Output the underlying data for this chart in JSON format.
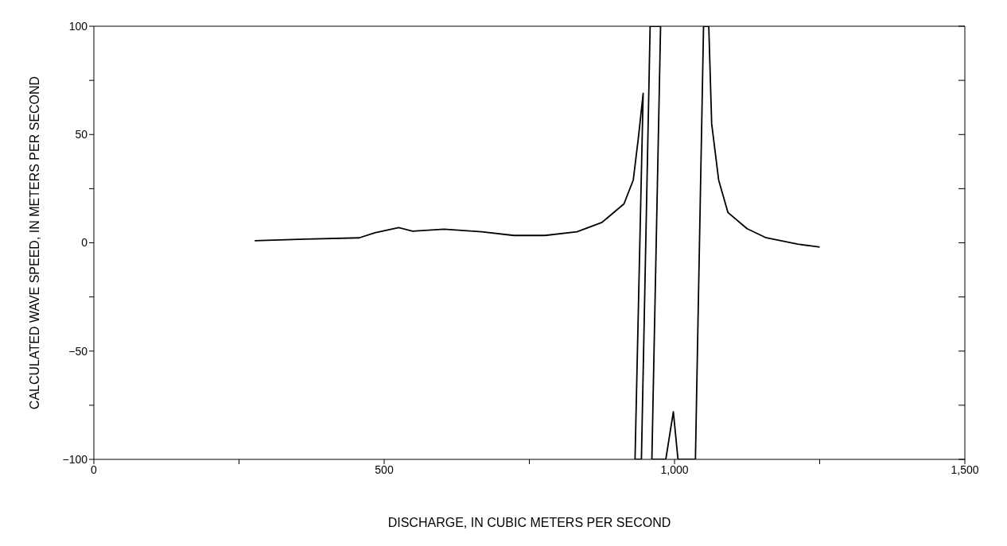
{
  "chart_data": {
    "type": "line",
    "xlabel": "DISCHARGE, IN CUBIC METERS PER SECOND",
    "ylabel": "CALCULATED WAVE SPEED, IN METERS PER SECOND",
    "series": [
      {
        "color": "#000000",
        "x": [
          277,
          364,
          457,
          484,
          525,
          549,
          603,
          668,
          723,
          777,
          832,
          875,
          913,
          929,
          938,
          946,
          932,
          943,
          958,
          976,
          961,
          985,
          998,
          1006,
          1036,
          1050,
          1059,
          1064,
          1076,
          1092,
          1125,
          1158,
          1212,
          1250
        ],
        "values": [
          1,
          1.7,
          2.3,
          4.6,
          7,
          5.4,
          6.3,
          5.1,
          3.4,
          3.4,
          5.1,
          9.4,
          18,
          29,
          49,
          69,
          -100,
          -100,
          100,
          100,
          -100,
          -100,
          -78,
          -100,
          -100,
          100,
          100,
          55,
          29,
          14,
          6.5,
          2.3,
          -0.6,
          -2
        ]
      }
    ],
    "xlim": [
      0,
      1500
    ],
    "xticks": [
      0,
      {
        "value": 250,
        "label": null
      },
      500,
      {
        "value": 750,
        "label": null
      },
      {
        "value": 1000,
        "label": "1,000"
      },
      {
        "value": 1250,
        "label": null
      },
      {
        "value": 1500,
        "label": "1,500"
      }
    ],
    "ylim": [
      -100,
      100
    ],
    "yticks": [
      -100,
      {
        "value": -75,
        "label": null
      },
      -50,
      {
        "value": -25,
        "label": null
      },
      0,
      {
        "value": 25,
        "label": null
      },
      50,
      {
        "value": 75,
        "label": null
      },
      100
    ],
    "grid": false,
    "legend": false,
    "marker": "none",
    "line_style": "solid"
  }
}
